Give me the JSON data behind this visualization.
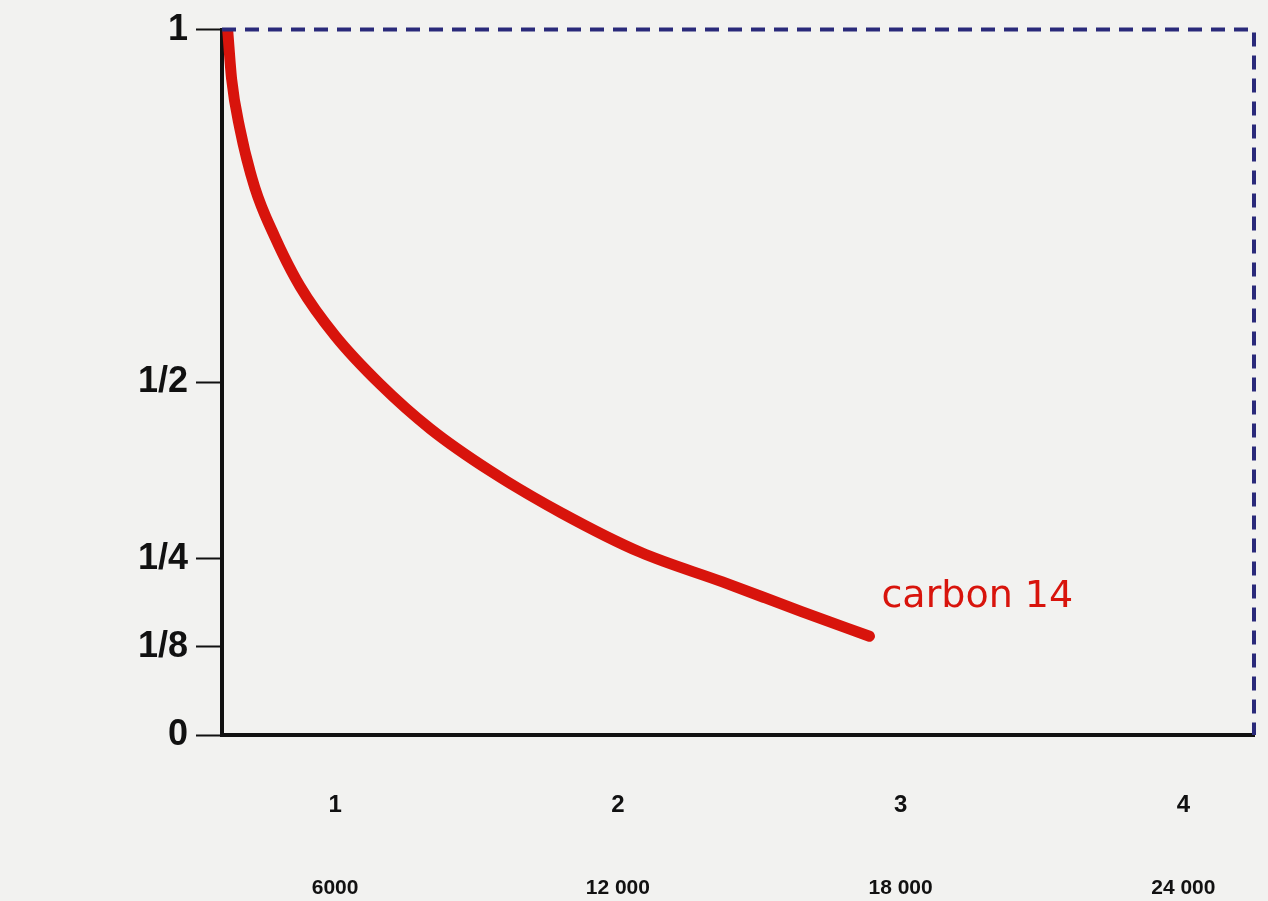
{
  "chart_data": {
    "type": "line",
    "x": [
      0.62,
      0.634,
      0.663,
      0.716,
      0.787,
      0.876,
      1.0,
      1.16,
      1.337,
      1.55,
      1.8,
      2.08,
      2.37,
      2.65,
      2.89
    ],
    "series": [
      {
        "name": "carbon 14",
        "color": "#d8140c",
        "values": [
          1.0,
          0.93,
          0.86,
          0.776,
          0.706,
          0.636,
          0.566,
          0.497,
          0.434,
          0.374,
          0.315,
          0.259,
          0.217,
          0.175,
          0.14
        ]
      }
    ],
    "xlim": [
      0.6,
      4.25
    ],
    "xticks": [
      1,
      2,
      3,
      4
    ],
    "x2lim": [
      3600,
      25500
    ],
    "x2ticks": [
      6000,
      {
        "value": 12000,
        "label": "12 000"
      },
      {
        "value": 18000,
        "label": "18 000"
      },
      {
        "value": 24000,
        "label": "24 000"
      }
    ],
    "ylim": [
      0,
      1
    ],
    "yticks": [
      0,
      {
        "value": 0.125,
        "label": "1/8"
      },
      {
        "value": 0.25,
        "label": "1/4"
      },
      {
        "value": 0.5,
        "label": "1/2"
      },
      1
    ],
    "grid": false,
    "legend": false,
    "marker": "none",
    "line_style": "solid"
  }
}
